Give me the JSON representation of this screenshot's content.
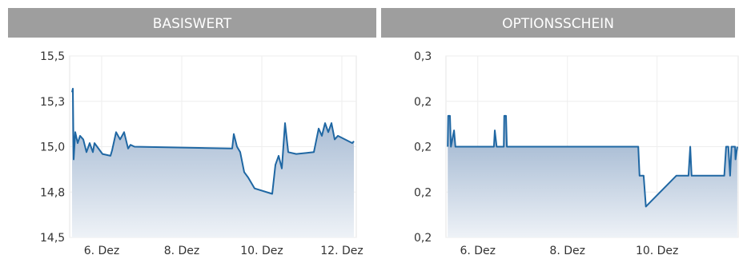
{
  "chart_data": [
    {
      "type": "area",
      "title": "BASISWERT",
      "color": "#1f67a3",
      "x": [
        5.26,
        5.28,
        5.3,
        5.34,
        5.4,
        5.46,
        5.54,
        5.62,
        5.7,
        5.78,
        5.82,
        6.02,
        6.22,
        6.26,
        6.36,
        6.46,
        6.56,
        6.66,
        6.72,
        6.82,
        9.26,
        9.3,
        9.38,
        9.46,
        9.56,
        9.66,
        9.82,
        10.26,
        10.34,
        10.42,
        10.5,
        10.58,
        10.66,
        10.86,
        11.3,
        11.42,
        11.5,
        11.58,
        11.66,
        11.74,
        11.82,
        11.9,
        12.26,
        12.3
      ],
      "values": [
        15.3,
        15.32,
        14.93,
        15.08,
        15.02,
        15.06,
        15.04,
        14.97,
        15.02,
        14.97,
        15.02,
        14.96,
        14.95,
        14.98,
        15.08,
        15.04,
        15.08,
        14.99,
        15.01,
        15.0,
        14.99,
        15.07,
        15.0,
        14.97,
        14.86,
        14.83,
        14.77,
        14.74,
        14.9,
        14.95,
        14.88,
        15.13,
        14.97,
        14.96,
        14.97,
        15.1,
        15.06,
        15.13,
        15.08,
        15.13,
        15.04,
        15.06,
        15.02,
        15.03
      ],
      "xlim": [
        5.2,
        12.36
      ],
      "ylim": [
        14.5,
        15.5
      ],
      "xticks": [
        {
          "value": 6,
          "label": "6. Dez"
        },
        {
          "value": 8,
          "label": "8. Dez"
        },
        {
          "value": 10,
          "label": "10. Dez"
        },
        {
          "value": 12,
          "label": "12. Dez"
        }
      ],
      "yticks": [
        {
          "value": 14.5,
          "label": "14,5"
        },
        {
          "value": 14.75,
          "label": "14,8"
        },
        {
          "value": 15,
          "label": "15,0"
        },
        {
          "value": 15.25,
          "label": "15,3"
        },
        {
          "value": 15.5,
          "label": "15,5"
        }
      ],
      "grid": true
    },
    {
      "type": "area",
      "title": "OPTIONSSCHEIN",
      "color": "#1f67a3",
      "x": [
        5.33,
        5.34,
        5.38,
        5.4,
        5.47,
        5.5,
        6.36,
        6.38,
        6.42,
        6.58,
        6.59,
        6.63,
        6.65,
        9.58,
        9.61,
        9.7,
        9.75,
        10.43,
        10.7,
        10.74,
        10.77,
        11.5,
        11.54,
        11.59,
        11.63,
        11.66,
        11.74,
        11.75,
        11.79
      ],
      "values": [
        0.25,
        0.267,
        0.267,
        0.25,
        0.259,
        0.25,
        0.25,
        0.259,
        0.25,
        0.25,
        0.267,
        0.267,
        0.25,
        0.25,
        0.234,
        0.234,
        0.217,
        0.234,
        0.234,
        0.25,
        0.234,
        0.234,
        0.25,
        0.25,
        0.234,
        0.25,
        0.25,
        0.243,
        0.25
      ],
      "xlim": [
        5.29,
        11.81
      ],
      "ylim": [
        0.2,
        0.3
      ],
      "xticks": [
        {
          "value": 6,
          "label": "6. Dez"
        },
        {
          "value": 8,
          "label": "8. Dez"
        },
        {
          "value": 10,
          "label": "10. Dez"
        }
      ],
      "yticks": [
        {
          "value": 0.2,
          "label": "0,2"
        },
        {
          "value": 0.225,
          "label": "0,2"
        },
        {
          "value": 0.25,
          "label": "0,2"
        },
        {
          "value": 0.275,
          "label": "0,2"
        },
        {
          "value": 0.3,
          "label": "0,3"
        }
      ],
      "grid": true
    }
  ]
}
